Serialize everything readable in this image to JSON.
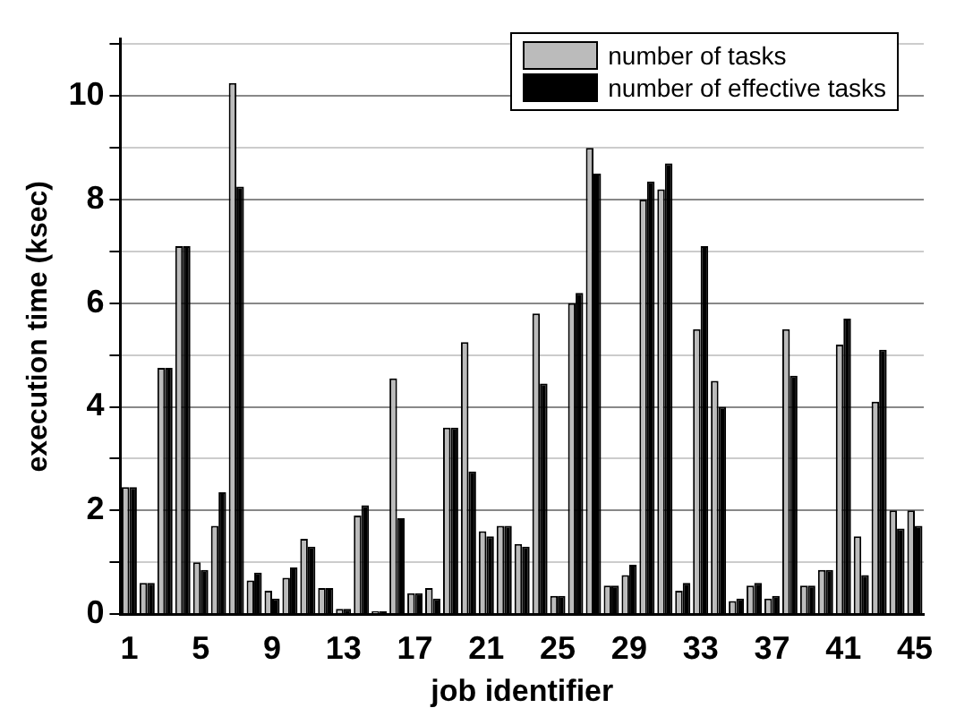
{
  "chart_data": {
    "type": "bar",
    "xlabel": "job identifier",
    "ylabel": "execution time (ksec)",
    "categories": [
      "1",
      null,
      null,
      null,
      "5",
      null,
      null,
      null,
      "9",
      null,
      null,
      null,
      "13",
      null,
      null,
      null,
      "17",
      null,
      null,
      null,
      "21",
      null,
      null,
      null,
      "25",
      null,
      null,
      null,
      "29",
      null,
      null,
      null,
      "33",
      null,
      null,
      null,
      "37",
      null,
      null,
      null,
      "41",
      null,
      null,
      null,
      "45"
    ],
    "series": [
      {
        "name": "number of tasks",
        "color": "#bbbbbb",
        "values": [
          2.45,
          0.6,
          4.75,
          7.1,
          1.0,
          1.7,
          10.25,
          0.65,
          0.45,
          0.7,
          1.45,
          0.5,
          0.1,
          1.9,
          0.05,
          4.55,
          0.4,
          0.5,
          3.6,
          5.25,
          1.6,
          1.7,
          1.35,
          5.8,
          0.35,
          6.0,
          9.0,
          0.55,
          0.75,
          8.0,
          8.2,
          0.45,
          5.5,
          4.5,
          0.25,
          0.55,
          0.3,
          5.5,
          0.55,
          0.85,
          5.2,
          1.5,
          4.1,
          2.0,
          2.0
        ]
      },
      {
        "name": "number of effective tasks",
        "color": "#000000",
        "values": [
          2.45,
          0.6,
          4.75,
          7.1,
          0.85,
          2.35,
          8.25,
          0.8,
          0.3,
          0.9,
          1.3,
          0.5,
          0.1,
          2.1,
          0.05,
          1.85,
          0.4,
          0.3,
          3.6,
          2.75,
          1.5,
          1.7,
          1.3,
          4.45,
          0.35,
          6.2,
          8.5,
          0.55,
          0.95,
          8.35,
          8.7,
          0.6,
          7.1,
          4.0,
          0.3,
          0.6,
          0.35,
          4.6,
          0.55,
          0.85,
          5.7,
          0.75,
          5.1,
          1.65,
          1.7
        ]
      }
    ],
    "ylim": [
      0,
      11.1
    ],
    "yticks": [
      0,
      {
        "value": 1,
        "label": null
      },
      2,
      {
        "value": 3,
        "label": null
      },
      4,
      {
        "value": 5,
        "label": null
      },
      6,
      {
        "value": 7,
        "label": null
      },
      8,
      {
        "value": 9,
        "label": null
      },
      10,
      {
        "value": 11,
        "label": null
      }
    ],
    "grid": "y",
    "legend": "top right"
  }
}
